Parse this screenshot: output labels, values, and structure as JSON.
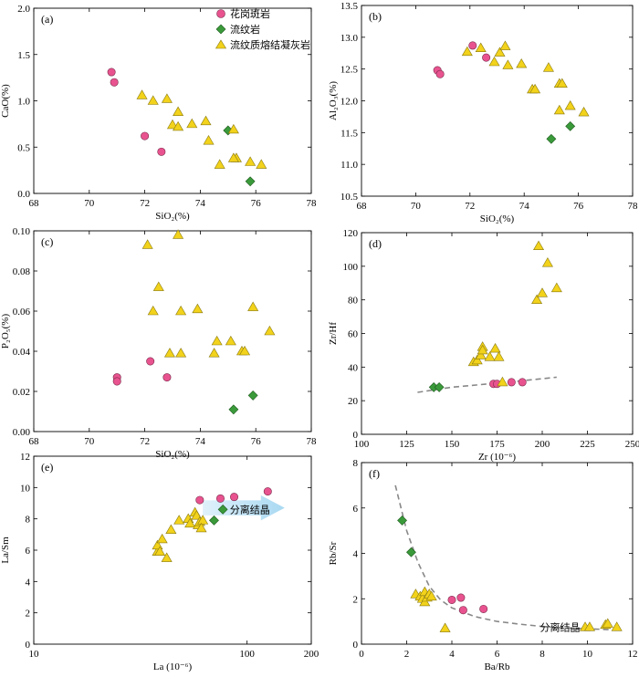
{
  "legend": {
    "items": [
      {
        "label": "花岗斑岩",
        "marker": "circle",
        "color": "#e8538f"
      },
      {
        "label": "流纹岩",
        "marker": "diamond",
        "color": "#3a9a3a"
      },
      {
        "label": "流纹质熔结凝灰岩",
        "marker": "triangle",
        "color": "#f2d21b"
      }
    ]
  },
  "colors": {
    "circle": "#e8538f",
    "diamond": "#3a9a3a",
    "triangle": "#f2d21b",
    "arrow": "#bfe3f5",
    "curve": "#888888"
  },
  "chart_data": [
    {
      "id": "a",
      "label": "(a)",
      "type": "scatter",
      "xlabel": "SiO₂(%)",
      "ylabel": "CaO(%)",
      "xlim": [
        68,
        78
      ],
      "ylim": [
        0,
        2.0
      ],
      "xticks": [
        68,
        70,
        72,
        74,
        76,
        78
      ],
      "yticks": [
        0.0,
        0.5,
        1.0,
        1.5,
        2.0
      ],
      "ydec": 1,
      "series": [
        {
          "marker": "circle",
          "points": [
            [
              70.8,
              1.31
            ],
            [
              70.9,
              1.2
            ],
            [
              72.0,
              0.62
            ],
            [
              72.6,
              0.45
            ]
          ]
        },
        {
          "marker": "diamond",
          "points": [
            [
              75.0,
              0.68
            ],
            [
              75.8,
              0.13
            ]
          ]
        },
        {
          "marker": "triangle",
          "points": [
            [
              71.9,
              1.06
            ],
            [
              72.3,
              1.0
            ],
            [
              72.8,
              1.02
            ],
            [
              73.0,
              0.74
            ],
            [
              73.2,
              0.72
            ],
            [
              73.2,
              0.88
            ],
            [
              73.7,
              0.75
            ],
            [
              74.2,
              0.78
            ],
            [
              74.3,
              0.57
            ],
            [
              74.7,
              0.31
            ],
            [
              75.2,
              0.69
            ],
            [
              75.3,
              0.38
            ],
            [
              75.2,
              0.38
            ],
            [
              75.8,
              0.34
            ],
            [
              76.2,
              0.31
            ]
          ]
        }
      ]
    },
    {
      "id": "b",
      "label": "(b)",
      "type": "scatter",
      "xlabel": "SiO₂(%)",
      "ylabel": "Al₂O₃(%)",
      "xlim": [
        68,
        78
      ],
      "ylim": [
        10.5,
        13.5
      ],
      "xticks": [
        68,
        70,
        72,
        74,
        76,
        78
      ],
      "yticks": [
        10.5,
        11.0,
        11.5,
        12.0,
        12.5,
        13.0,
        13.5
      ],
      "ydec": 1,
      "series": [
        {
          "marker": "circle",
          "points": [
            [
              70.8,
              12.48
            ],
            [
              70.9,
              12.42
            ],
            [
              72.1,
              12.87
            ],
            [
              72.6,
              12.68
            ]
          ]
        },
        {
          "marker": "diamond",
          "points": [
            [
              75.0,
              11.4
            ],
            [
              75.7,
              11.6
            ]
          ]
        },
        {
          "marker": "triangle",
          "points": [
            [
              71.9,
              12.77
            ],
            [
              72.4,
              12.83
            ],
            [
              72.9,
              12.61
            ],
            [
              73.1,
              12.76
            ],
            [
              73.3,
              12.86
            ],
            [
              73.4,
              12.56
            ],
            [
              73.9,
              12.58
            ],
            [
              74.3,
              12.18
            ],
            [
              74.4,
              12.18
            ],
            [
              74.9,
              12.52
            ],
            [
              75.3,
              12.27
            ],
            [
              75.4,
              12.27
            ],
            [
              75.3,
              11.85
            ],
            [
              75.7,
              11.92
            ],
            [
              76.2,
              11.82
            ]
          ]
        }
      ]
    },
    {
      "id": "c",
      "label": "(c)",
      "type": "scatter",
      "xlabel": "SiO₂(%)",
      "ylabel": "P₂O₅(%)",
      "xlim": [
        68,
        78
      ],
      "ylim": [
        0.0,
        0.1
      ],
      "xticks": [
        68,
        70,
        72,
        74,
        76,
        78
      ],
      "yticks": [
        0.0,
        0.02,
        0.04,
        0.06,
        0.08,
        0.1
      ],
      "ydec": 2,
      "series": [
        {
          "marker": "circle",
          "points": [
            [
              71.0,
              0.027
            ],
            [
              71.0,
              0.025
            ],
            [
              72.2,
              0.035
            ],
            [
              72.8,
              0.027
            ]
          ]
        },
        {
          "marker": "diamond",
          "points": [
            [
              75.2,
              0.011
            ],
            [
              75.9,
              0.018
            ]
          ]
        },
        {
          "marker": "triangle",
          "points": [
            [
              72.1,
              0.093
            ],
            [
              72.3,
              0.06
            ],
            [
              72.5,
              0.072
            ],
            [
              72.9,
              0.039
            ],
            [
              73.2,
              0.098
            ],
            [
              73.3,
              0.06
            ],
            [
              73.3,
              0.039
            ],
            [
              73.9,
              0.061
            ],
            [
              74.5,
              0.039
            ],
            [
              74.6,
              0.045
            ],
            [
              75.1,
              0.045
            ],
            [
              75.5,
              0.04
            ],
            [
              75.6,
              0.04
            ],
            [
              75.9,
              0.062
            ],
            [
              76.5,
              0.05
            ]
          ]
        }
      ]
    },
    {
      "id": "d",
      "label": "(d)",
      "type": "scatter",
      "xlabel": "Zr (10⁻⁶)",
      "ylabel": "Zr/Hf",
      "xlim": [
        100,
        250
      ],
      "ylim": [
        0,
        120
      ],
      "xticks": [
        100,
        125,
        150,
        175,
        200,
        225,
        250
      ],
      "yticks": [
        0,
        20,
        40,
        60,
        80,
        100,
        120
      ],
      "ydec": 0,
      "curve": {
        "points": [
          [
            131,
            25
          ],
          [
            150,
            28
          ],
          [
            170,
            30
          ],
          [
            190,
            32
          ],
          [
            208,
            34
          ]
        ]
      },
      "series": [
        {
          "marker": "circle",
          "points": [
            [
              173,
              30
            ],
            [
              175,
              30
            ],
            [
              183,
              31
            ],
            [
              189,
              31
            ]
          ]
        },
        {
          "marker": "diamond",
          "points": [
            [
              140,
              28
            ],
            [
              143,
              28
            ]
          ]
        },
        {
          "marker": "triangle",
          "points": [
            [
              162,
              43
            ],
            [
              164,
              44
            ],
            [
              166,
              47
            ],
            [
              167,
              52
            ],
            [
              167,
              50
            ],
            [
              171,
              46
            ],
            [
              174,
              51
            ],
            [
              176,
              46
            ],
            [
              178,
              31
            ],
            [
              197,
              80
            ],
            [
              200,
              84
            ],
            [
              198,
              112
            ],
            [
              203,
              102
            ],
            [
              208,
              87
            ]
          ]
        }
      ]
    },
    {
      "id": "e",
      "label": "(e)",
      "type": "scatter",
      "xlabel": "La (10⁻⁶)",
      "ylabel": "La/Sm",
      "xlim": [
        10,
        200
      ],
      "ylim": [
        0,
        12
      ],
      "xscale": "log",
      "xticks": [
        10,
        100,
        200
      ],
      "yticks": [
        0,
        2,
        4,
        6,
        8,
        10,
        12
      ],
      "ydec": 0,
      "annotation": {
        "text": "分离结晶",
        "arrow_from": [
          62,
          8.7
        ],
        "arrow_to": [
          150,
          8.7
        ],
        "text_at": [
          83,
          8.6
        ]
      },
      "series": [
        {
          "marker": "circle",
          "points": [
            [
              60,
              9.2
            ],
            [
              75,
              9.3
            ],
            [
              87,
              9.4
            ],
            [
              125,
              9.75
            ]
          ]
        },
        {
          "marker": "diamond",
          "points": [
            [
              70,
              7.9
            ],
            [
              77,
              8.6
            ]
          ]
        },
        {
          "marker": "triangle",
          "points": [
            [
              38,
              5.9
            ],
            [
              38,
              6.3
            ],
            [
              39,
              5.9
            ],
            [
              40,
              6.7
            ],
            [
              42,
              5.5
            ],
            [
              44,
              7.3
            ],
            [
              48,
              7.9
            ],
            [
              53,
              8.0
            ],
            [
              54,
              7.7
            ],
            [
              57,
              8.4
            ],
            [
              58,
              8.2
            ],
            [
              59,
              7.6
            ],
            [
              60,
              7.8
            ],
            [
              62,
              7.9
            ],
            [
              61,
              7.4
            ]
          ]
        }
      ]
    },
    {
      "id": "f",
      "label": "(f)",
      "type": "scatter",
      "xlabel": "Ba/Rb",
      "ylabel": "Rb/Sr",
      "xlim": [
        0,
        12
      ],
      "ylim": [
        0,
        8
      ],
      "xticks": [
        0,
        2,
        4,
        6,
        8,
        10,
        12
      ],
      "yticks": [
        0,
        2,
        4,
        6,
        8
      ],
      "ydec": 0,
      "annotation": {
        "text": "分离结晶",
        "text_at": [
          7.9,
          0.75
        ]
      },
      "curve": {
        "points": [
          [
            1.5,
            7.0
          ],
          [
            2.0,
            5.0
          ],
          [
            2.5,
            3.6
          ],
          [
            3.0,
            2.55
          ],
          [
            3.5,
            1.95
          ],
          [
            4.0,
            1.6
          ],
          [
            5.0,
            1.22
          ],
          [
            6.0,
            1.0
          ],
          [
            7.0,
            0.88
          ],
          [
            8.0,
            0.78
          ],
          [
            9.0,
            0.72
          ],
          [
            10.0,
            0.68
          ],
          [
            11.0,
            0.64
          ]
        ]
      },
      "series": [
        {
          "marker": "circle",
          "points": [
            [
              4.0,
              1.95
            ],
            [
              4.4,
              2.05
            ],
            [
              4.5,
              1.5
            ],
            [
              5.4,
              1.55
            ]
          ]
        },
        {
          "marker": "diamond",
          "points": [
            [
              1.8,
              5.45
            ],
            [
              2.2,
              4.05
            ]
          ]
        },
        {
          "marker": "triangle",
          "points": [
            [
              2.4,
              2.2
            ],
            [
              2.6,
              2.1
            ],
            [
              2.7,
              2.0
            ],
            [
              2.8,
              1.85
            ],
            [
              2.8,
              2.3
            ],
            [
              2.9,
              2.05
            ],
            [
              3.0,
              2.2
            ],
            [
              3.1,
              2.1
            ],
            [
              3.7,
              0.7
            ],
            [
              9.9,
              0.75
            ],
            [
              10.1,
              0.75
            ],
            [
              10.8,
              0.85
            ],
            [
              10.9,
              0.9
            ],
            [
              11.3,
              0.75
            ]
          ]
        }
      ]
    }
  ]
}
